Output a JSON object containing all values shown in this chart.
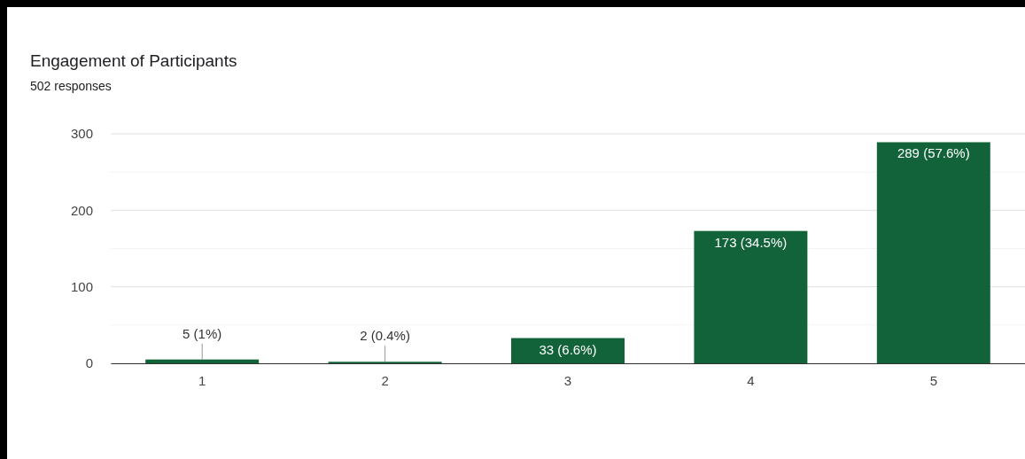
{
  "chart_data": {
    "type": "bar",
    "title": "Engagement of Participants",
    "subtitle": "502 responses",
    "categories": [
      "1",
      "2",
      "3",
      "4",
      "5"
    ],
    "values": [
      5,
      2,
      33,
      173,
      289
    ],
    "value_labels": [
      "5 (1%)",
      "2 (0.4%)",
      "33 (6.6%)",
      "173 (34.5%)",
      "289 (57.6%)"
    ],
    "color": "#12633a",
    "ylim": [
      0,
      300
    ],
    "yticks": [
      0,
      {
        "value": 50,
        "label": null
      },
      100,
      {
        "value": 150,
        "label": null
      },
      200,
      {
        "value": 250,
        "label": null
      },
      300
    ],
    "grid": "y"
  }
}
